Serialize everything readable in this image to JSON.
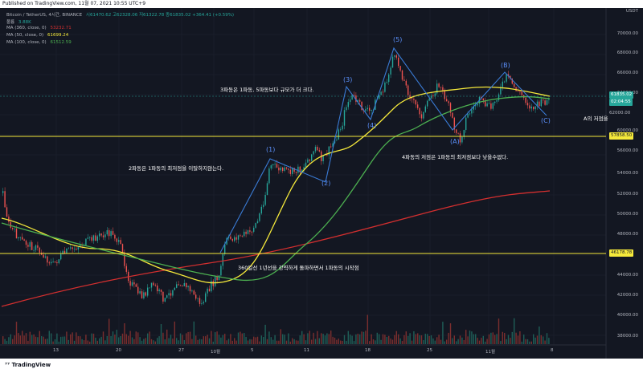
{
  "header": {
    "published": "Published on TradingView.com, 11월 07, 2021 10:55 UTC+9"
  },
  "legend": {
    "title": "Bitcoin / TetherUS, 4시간, BINANCE",
    "ohlc": "시61470.62  고62328.06  저61322.78  종61835.02 +364.41 (+0.59%)",
    "volume_label": "볼륨",
    "volume_value": "3.88K",
    "ma360_label": "MA (360, close, 0)",
    "ma360_value": "53232.71",
    "ma50_label": "MA (50, close, 0)",
    "ma50_value": "61699.24",
    "ma100_label": "MA (100, close, 0)",
    "ma100_value": "61512.59"
  },
  "colors": {
    "ma360": "#d32f2f",
    "ma50": "#f5e93b",
    "ma100": "#4caf50",
    "wave": "#3a7bd5",
    "hline": "#f5e93b",
    "up": "#26a69a",
    "down": "#ef5350"
  },
  "annotations": {
    "wave3": "3파동은 1파동, 5파동보다 규모가 더 크다.",
    "wave2": "2파동은 1파동의 최저점을 이탈하지않는다.",
    "wave4": "4파동의 저점은 1파동의 최저점보다 낮을수없다.",
    "wave1": "360일선 1년선을 강력하게 돌파하면서 1파동의 시작점",
    "a_low": "A의 저점을"
  },
  "wave_labels": {
    "w1": "(1)",
    "w2": "(2)",
    "w3": "(3)",
    "w4": "(4)",
    "w5": "(5)",
    "a": "(A)",
    "b": "(B)",
    "c": "(C)"
  },
  "price_axis": {
    "currency": "USDT",
    "ticks": [
      "70000.00",
      "68000.00",
      "66000.00",
      "64000.00",
      "62000.00",
      "60000.00",
      "56000.00",
      "54000.00",
      "52000.00",
      "50000.00",
      "48000.00",
      "44000.00",
      "42000.00",
      "40000.00",
      "38000.00"
    ],
    "current_price": "61835.02",
    "countdown": "02:04:55",
    "hline_upper": "57858.50",
    "hline_lower": "46178.78"
  },
  "time_axis": {
    "ticks": [
      "13",
      "20",
      "27",
      "10월",
      "5",
      "11",
      "18",
      "25",
      "11월",
      "8"
    ]
  },
  "footer": {
    "brand": "TradingView"
  }
}
